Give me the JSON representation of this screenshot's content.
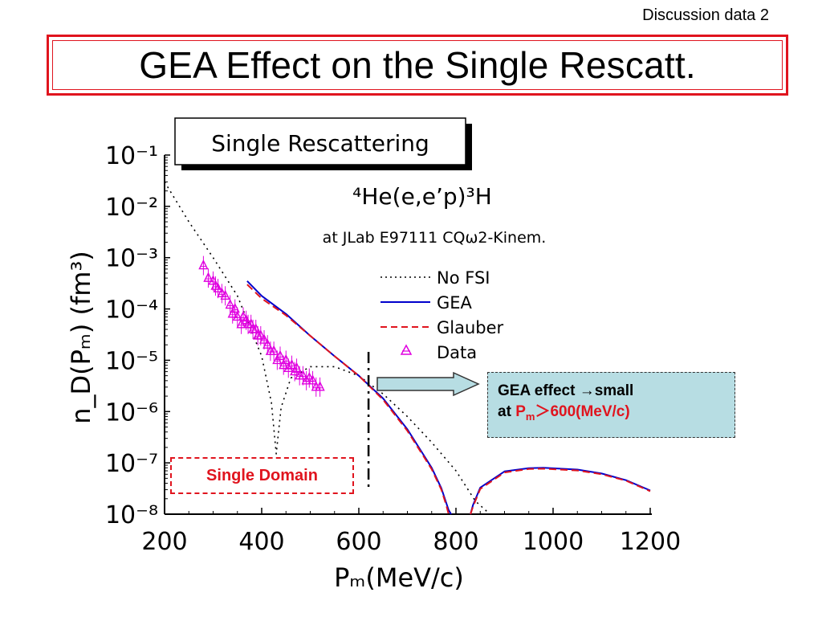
{
  "slide": {
    "corner_label": "Discussion data 2",
    "title": "GEA Effect on the Single Rescatt."
  },
  "chart_data": {
    "type": "line",
    "panel_title": "Single Rescattering",
    "reaction": "⁴He(e,e’p)³H",
    "kinematics": "at JLab E97111 CQω2-Kinem.",
    "xlabel": "Pₘ(MeV/c)",
    "ylabel": "n_D(Pₘ) (fm³)",
    "xlim": [
      200,
      1200
    ],
    "ylim": [
      1e-08,
      0.1
    ],
    "yscale": "log",
    "x_ticks": [
      "200",
      "400",
      "600",
      "800",
      "1000",
      "1200"
    ],
    "y_ticks": [
      "10⁻¹",
      "10⁻²",
      "10⁻³",
      "10⁻⁴",
      "10⁻⁵",
      "10⁻⁶",
      "10⁻⁷",
      "10⁻⁸"
    ],
    "y_tick_values": [
      0.1,
      0.01,
      0.001,
      0.0001,
      1e-05,
      1e-06,
      1e-07,
      1e-08
    ],
    "legend_position": "right-center",
    "series": [
      {
        "name": "No FSI",
        "style": "dotted",
        "color": "#000000",
        "x": [
          200,
          250,
          300,
          350,
          400,
          420,
          430,
          440,
          460,
          500,
          550,
          600,
          650,
          700,
          750,
          800,
          840,
          870
        ],
        "y": [
          0.03,
          0.005,
          0.001,
          0.00018,
          1.2e-05,
          1.5e-06,
          1.5e-07,
          1.2e-06,
          4.5e-06,
          7.5e-06,
          7.5e-06,
          5e-06,
          2.2e-06,
          8e-07,
          2.5e-07,
          7e-08,
          1.8e-08,
          9e-09
        ]
      },
      {
        "name": "GEA",
        "style": "solid",
        "color": "#0000cc",
        "x": [
          370,
          400,
          450,
          500,
          550,
          600,
          650,
          700,
          730,
          750,
          770,
          785,
          790,
          null,
          830,
          835,
          850,
          900,
          950,
          980,
          1050,
          1100,
          1150,
          1200
        ],
        "y": [
          0.00035,
          0.00018,
          8e-05,
          3e-05,
          1.2e-05,
          5e-06,
          1.8e-06,
          4.5e-07,
          1.6e-07,
          8e-08,
          3.2e-08,
          1.2e-08,
          1e-08,
          null,
          1e-08,
          1.5e-08,
          3.3e-08,
          6.8e-08,
          7.9e-08,
          8e-08,
          7.4e-08,
          6.2e-08,
          4.6e-08,
          2.9e-08
        ]
      },
      {
        "name": "Glauber",
        "style": "dashed",
        "color": "#e0141e",
        "x": [
          370,
          400,
          450,
          500,
          550,
          600,
          650,
          700,
          730,
          750,
          770,
          780,
          785,
          null,
          830,
          835,
          850,
          900,
          950,
          980,
          1050,
          1100,
          1150,
          1200
        ],
        "y": [
          0.0003,
          0.00016,
          7.5e-05,
          3e-05,
          1.2e-05,
          5e-06,
          1.7e-06,
          4.2e-07,
          1.5e-07,
          7.5e-08,
          3e-08,
          1.5e-08,
          1e-08,
          null,
          1e-08,
          1.4e-08,
          3.1e-08,
          6.5e-08,
          7.6e-08,
          7.7e-08,
          7.1e-08,
          6e-08,
          4.5e-08,
          2.8e-08
        ]
      },
      {
        "name": "Data",
        "style": "markers",
        "color": "#e000e0",
        "x": [
          280,
          290,
          300,
          305,
          310,
          318,
          325,
          335,
          340,
          345,
          350,
          358,
          362,
          368,
          372,
          378,
          382,
          388,
          392,
          398,
          405,
          412,
          418,
          425,
          432,
          438,
          445,
          450,
          455,
          462,
          468,
          472,
          478,
          485,
          492,
          498,
          505,
          512,
          520
        ],
        "y": [
          0.0007,
          0.0004,
          0.00035,
          0.00028,
          0.00025,
          0.0002,
          0.00018,
          0.00012,
          8e-05,
          0.0001,
          7e-05,
          5e-05,
          7e-05,
          6e-05,
          5e-05,
          5e-05,
          4e-05,
          4e-05,
          3e-05,
          3e-05,
          2.5e-05,
          2e-05,
          1.5e-05,
          1.5e-05,
          1e-05,
          1.2e-05,
          8e-06,
          1e-05,
          7e-06,
          8e-06,
          6e-06,
          7e-06,
          5e-06,
          5e-06,
          4e-06,
          4.5e-06,
          4e-06,
          3e-06,
          3e-06
        ]
      }
    ],
    "cutoff_x": 620
  },
  "annotations": {
    "callout_line1": "GEA effect →small",
    "callout_at": "at ",
    "callout_p": "P",
    "callout_sub": "m",
    "callout_rest": "＞600(MeV/c)",
    "domain_label": "Single Domain"
  }
}
